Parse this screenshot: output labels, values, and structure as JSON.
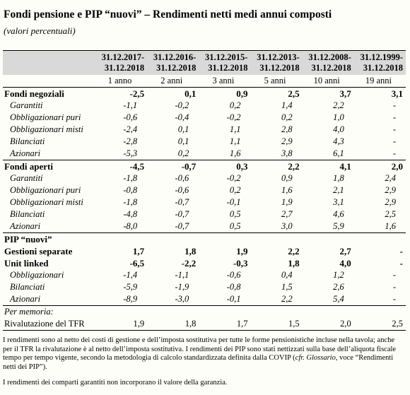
{
  "header": {
    "title": "Fondi pensione e PIP “nuovi” – Rendimenti netti medi annui composti",
    "subtitle": "(valori percentuali)"
  },
  "table": {
    "periods": [
      [
        "31.12.2017-",
        "31.12.2018"
      ],
      [
        "31.12.2016-",
        "31.12.2018"
      ],
      [
        "31.12.2015-",
        "31.12.2018"
      ],
      [
        "31.12.2013-",
        "31.12.2018"
      ],
      [
        "31.12.2008-",
        "31.12.2018"
      ],
      [
        "31.12.1999-",
        "31.12.2018"
      ]
    ],
    "durations": [
      "1 anno",
      "2 anni",
      "3 anni",
      "5 anni",
      "10 anni",
      "19 anni"
    ],
    "sections": [
      {
        "label": "Fondi negoziali",
        "values": [
          "-2,5",
          "0,1",
          "0,9",
          "2,5",
          "3,7",
          "3,1"
        ],
        "rows": [
          {
            "label": "Garantiti",
            "values": [
              "-1,1",
              "-0,2",
              "0,2",
              "1,4",
              "2,2",
              "-"
            ]
          },
          {
            "label": "Obbligazionari puri",
            "values": [
              "-0,6",
              "-0,4",
              "-0,2",
              "0,2",
              "1,0",
              "-"
            ]
          },
          {
            "label": "Obbligazionari misti",
            "values": [
              "-2,4",
              "0,1",
              "1,1",
              "2,8",
              "4,0",
              "-"
            ]
          },
          {
            "label": "Bilanciati",
            "values": [
              "-2,8",
              "0,1",
              "1,1",
              "2,9",
              "4,3",
              "-"
            ]
          },
          {
            "label": "Azionari",
            "values": [
              "-5,3",
              "0,2",
              "1,6",
              "3,8",
              "6,1",
              "-"
            ]
          }
        ]
      },
      {
        "label": "Fondi aperti",
        "values": [
          "-4,5",
          "-0,7",
          "0,3",
          "2,2",
          "4,1",
          "2,0"
        ],
        "rows": [
          {
            "label": "Garantiti",
            "values": [
              "-1,8",
              "-0,6",
              "-0,2",
              "0,9",
              "1,8",
              "2,4"
            ]
          },
          {
            "label": "Obbligazionari puri",
            "values": [
              "-0,8",
              "-0,6",
              "0,2",
              "1,6",
              "2,1",
              "2,9"
            ]
          },
          {
            "label": "Obbligazionari misti",
            "values": [
              "-1,8",
              "-0,7",
              "-0,1",
              "1,9",
              "3,1",
              "2,9"
            ]
          },
          {
            "label": "Bilanciati",
            "values": [
              "-4,8",
              "-0,7",
              "0,5",
              "2,7",
              "4,6",
              "2,5"
            ]
          },
          {
            "label": "Azionari",
            "values": [
              "-8,0",
              "-0,7",
              "0,5",
              "3,0",
              "5,9",
              "1,6"
            ]
          }
        ]
      },
      {
        "label": "PIP “nuovi”",
        "groups": [
          {
            "label": "Gestioni separate",
            "values": [
              "1,7",
              "1,8",
              "1,9",
              "2,2",
              "2,7",
              "-"
            ],
            "rows": []
          },
          {
            "label": "Unit linked",
            "values": [
              "-6,5",
              "-2,2",
              "-0,3",
              "1,8",
              "4,0",
              "-"
            ],
            "rows": [
              {
                "label": "Obbligazionari",
                "values": [
                  "-1,4",
                  "-1,1",
                  "-0,6",
                  "0,4",
                  "1,2",
                  "-"
                ]
              },
              {
                "label": "Bilanciati",
                "values": [
                  "-5,9",
                  "-1,9",
                  "-0,8",
                  "1,5",
                  "2,6",
                  "-"
                ]
              },
              {
                "label": "Azionari",
                "values": [
                  "-8,9",
                  "-3,0",
                  "-0,1",
                  "2,2",
                  "5,4",
                  "-"
                ]
              }
            ]
          }
        ]
      },
      {
        "label": "Per memoria:",
        "rows": [
          {
            "label": "Rivalutazione del TFR",
            "values": [
              "1,9",
              "1,8",
              "1,7",
              "1,5",
              "2,0",
              "2,5"
            ]
          }
        ]
      }
    ]
  },
  "notes": [
    [
      "I rendimenti sono al netto dei costi di gestione e dell’imposta sostitutiva per tutte le forme pensionistiche incluse nella tavola; anche per il TFR la rivalutazione è al netto dell’imposta sostitutiva. I rendimenti dei PIP sono stati nettizzati sulla base dell’aliquota fiscale tempo per tempo vigente, secondo la metodologia di calcolo standardizzata definita dalla COVIP (",
      "cfr. Glossario",
      ", voce “Rendimenti netti dei PIP”)."
    ],
    [
      "I rendimenti dei comparti garantiti non incorporano il valore della garanzia."
    ]
  ]
}
